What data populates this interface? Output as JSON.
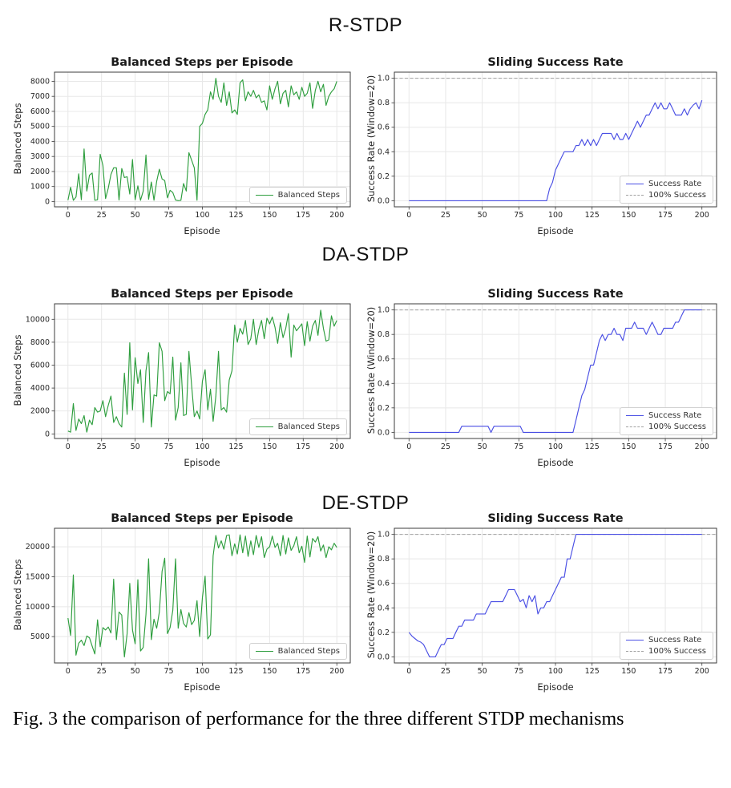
{
  "figure": {
    "sections": [
      {
        "label": "R-STDP"
      },
      {
        "label": "DA-STDP"
      },
      {
        "label": "DE-STDP"
      }
    ],
    "caption": "Fig. 3 the comparison of performance for the three different STDP mechanisms"
  },
  "colors": {
    "steps_line": "#2e9e3e",
    "rate_line": "#4a4fe4",
    "ref_line": "#a0a0a0",
    "grid": "#e8e8e8",
    "spine": "#3c3c3c",
    "tick": "#262626"
  },
  "chart_data": [
    {
      "type": "line",
      "section": "R-STDP",
      "title": "Balanced Steps per Episode",
      "xlabel": "Episode",
      "ylabel": "Balanced Steps",
      "xlim": [
        -10,
        210
      ],
      "ylim": [
        -350,
        8610
      ],
      "xticks": [
        0,
        25,
        50,
        75,
        100,
        125,
        150,
        175,
        200
      ],
      "xtick_labels": [
        "0",
        "25",
        "50",
        "75",
        "100",
        "125",
        "150",
        "175",
        "200"
      ],
      "yticks": [
        0,
        1000,
        2000,
        3000,
        4000,
        5000,
        6000,
        7000,
        8000
      ],
      "ytick_labels": [
        "0",
        "1000",
        "2000",
        "3000",
        "4000",
        "5000",
        "6000",
        "7000",
        "8000"
      ],
      "legend": [
        {
          "label": "Balanced Steps",
          "style": "solid",
          "color_key": "steps_line"
        }
      ],
      "x_start": 0,
      "x_step": 2,
      "series": [
        {
          "name": "Balanced Steps",
          "color_key": "steps_line",
          "values": [
            100,
            950,
            80,
            300,
            1850,
            120,
            3500,
            700,
            1750,
            1900,
            90,
            120,
            3150,
            2400,
            200,
            900,
            1800,
            2250,
            2250,
            100,
            2200,
            1600,
            1650,
            500,
            2800,
            120,
            1050,
            80,
            700,
            3100,
            150,
            1300,
            90,
            1350,
            2150,
            1500,
            1400,
            250,
            750,
            600,
            100,
            60,
            80,
            1200,
            700,
            3250,
            2750,
            2250,
            90,
            5000,
            5200,
            5800,
            6100,
            7300,
            6800,
            8200,
            7000,
            6600,
            7900,
            6400,
            7300,
            5900,
            6100,
            5800,
            7900,
            8100,
            6700,
            7300,
            7000,
            7400,
            6900,
            7100,
            6600,
            6700,
            6100,
            7700,
            6800,
            7500,
            8000,
            6500,
            7200,
            7400,
            6300,
            7700,
            7100,
            7300,
            6800,
            7600,
            7000,
            7200,
            7900,
            6200,
            7400,
            8000,
            7300,
            7800,
            6400,
            7000,
            7300,
            7500,
            8000
          ]
        }
      ]
    },
    {
      "type": "line",
      "section": "R-STDP",
      "title": "Sliding Success Rate",
      "xlabel": "Episode",
      "ylabel": "Success Rate (Window=20)",
      "xlim": [
        -10,
        210
      ],
      "ylim": [
        -0.05,
        1.05
      ],
      "xticks": [
        0,
        25,
        50,
        75,
        100,
        125,
        150,
        175,
        200
      ],
      "xtick_labels": [
        "0",
        "25",
        "50",
        "75",
        "100",
        "125",
        "150",
        "175",
        "200"
      ],
      "yticks": [
        0.0,
        0.2,
        0.4,
        0.6,
        0.8,
        1.0
      ],
      "ytick_labels": [
        "0.0",
        "0.2",
        "0.4",
        "0.6",
        "0.8",
        "1.0"
      ],
      "ref_line": {
        "y": 1.0,
        "label": "100% Success"
      },
      "legend": [
        {
          "label": "Success Rate",
          "style": "solid",
          "color_key": "rate_line"
        },
        {
          "label": "100% Success",
          "style": "dashed",
          "color_key": "ref_line"
        }
      ],
      "x_start": 0,
      "x_step": 2,
      "series": [
        {
          "name": "Success Rate",
          "color_key": "rate_line",
          "values": [
            0,
            0,
            0,
            0,
            0,
            0,
            0,
            0,
            0,
            0,
            0,
            0,
            0,
            0,
            0,
            0,
            0,
            0,
            0,
            0,
            0,
            0,
            0,
            0,
            0,
            0,
            0,
            0,
            0,
            0,
            0,
            0,
            0,
            0,
            0,
            0,
            0,
            0,
            0,
            0,
            0,
            0,
            0,
            0,
            0,
            0,
            0,
            0,
            0.1,
            0.15,
            0.25,
            0.3,
            0.35,
            0.4,
            0.4,
            0.4,
            0.4,
            0.45,
            0.45,
            0.5,
            0.45,
            0.5,
            0.45,
            0.5,
            0.45,
            0.5,
            0.55,
            0.55,
            0.55,
            0.55,
            0.5,
            0.55,
            0.5,
            0.5,
            0.55,
            0.5,
            0.55,
            0.6,
            0.65,
            0.6,
            0.65,
            0.7,
            0.7,
            0.75,
            0.8,
            0.75,
            0.8,
            0.75,
            0.75,
            0.8,
            0.75,
            0.7,
            0.7,
            0.7,
            0.75,
            0.7,
            0.75,
            0.78,
            0.8,
            0.75,
            0.82
          ]
        }
      ]
    },
    {
      "type": "line",
      "section": "DA-STDP",
      "title": "Balanced Steps per Episode",
      "xlabel": "Episode",
      "ylabel": "Balanced Steps",
      "xlim": [
        -10,
        210
      ],
      "ylim": [
        -400,
        11350
      ],
      "xticks": [
        0,
        25,
        50,
        75,
        100,
        125,
        150,
        175,
        200
      ],
      "xtick_labels": [
        "0",
        "25",
        "50",
        "75",
        "100",
        "125",
        "150",
        "175",
        "200"
      ],
      "yticks": [
        0,
        2000,
        4000,
        6000,
        8000,
        10000
      ],
      "ytick_labels": [
        "0",
        "2000",
        "4000",
        "6000",
        "8000",
        "10000"
      ],
      "legend": [
        {
          "label": "Balanced Steps",
          "style": "solid",
          "color_key": "steps_line"
        }
      ],
      "x_start": 0,
      "x_step": 2,
      "series": [
        {
          "name": "Balanced Steps",
          "color_key": "steps_line",
          "values": [
            250,
            150,
            2650,
            300,
            1300,
            900,
            1600,
            150,
            1200,
            800,
            2300,
            1900,
            2000,
            2900,
            1500,
            2500,
            3300,
            1000,
            1500,
            900,
            600,
            5300,
            1700,
            7950,
            2100,
            6650,
            4400,
            5600,
            1000,
            5500,
            7100,
            600,
            3400,
            3300,
            7950,
            7200,
            2900,
            3700,
            3500,
            6700,
            1200,
            2300,
            6200,
            1600,
            1700,
            7200,
            4200,
            1500,
            2000,
            1300,
            4600,
            5600,
            2100,
            3900,
            1100,
            3300,
            7200,
            2100,
            2300,
            1900,
            4700,
            5500,
            9500,
            8000,
            9200,
            8700,
            9900,
            7800,
            8300,
            10000,
            7800,
            9100,
            9900,
            8300,
            10100,
            9600,
            10200,
            9300,
            7900,
            9700,
            8400,
            9200,
            10500,
            6700,
            9500,
            9000,
            9300,
            9600,
            7700,
            9800,
            8100,
            9400,
            9900,
            8600,
            10800,
            9200,
            8100,
            8200,
            10300,
            9400,
            9900
          ]
        }
      ]
    },
    {
      "type": "line",
      "section": "DA-STDP",
      "title": "Sliding Success Rate",
      "xlabel": "Episode",
      "ylabel": "Success Rate (Window=20)",
      "xlim": [
        -10,
        210
      ],
      "ylim": [
        -0.05,
        1.05
      ],
      "xticks": [
        0,
        25,
        50,
        75,
        100,
        125,
        150,
        175,
        200
      ],
      "xtick_labels": [
        "0",
        "25",
        "50",
        "75",
        "100",
        "125",
        "150",
        "175",
        "200"
      ],
      "yticks": [
        0.0,
        0.2,
        0.4,
        0.6,
        0.8,
        1.0
      ],
      "ytick_labels": [
        "0.0",
        "0.2",
        "0.4",
        "0.6",
        "0.8",
        "1.0"
      ],
      "ref_line": {
        "y": 1.0,
        "label": "100% Success"
      },
      "legend": [
        {
          "label": "Success Rate",
          "style": "solid",
          "color_key": "rate_line"
        },
        {
          "label": "100% Success",
          "style": "dashed",
          "color_key": "ref_line"
        }
      ],
      "x_start": 0,
      "x_step": 2,
      "series": [
        {
          "name": "Success Rate",
          "color_key": "rate_line",
          "values": [
            0,
            0,
            0,
            0,
            0,
            0,
            0,
            0,
            0,
            0,
            0,
            0,
            0,
            0,
            0,
            0,
            0,
            0,
            0.05,
            0.05,
            0.05,
            0.05,
            0.05,
            0.05,
            0.05,
            0.05,
            0.05,
            0.05,
            0,
            0.05,
            0.05,
            0.05,
            0.05,
            0.05,
            0.05,
            0.05,
            0.05,
            0.05,
            0.05,
            0,
            0,
            0,
            0,
            0,
            0,
            0,
            0,
            0,
            0,
            0,
            0,
            0,
            0,
            0,
            0,
            0,
            0,
            0.1,
            0.2,
            0.3,
            0.35,
            0.45,
            0.55,
            0.55,
            0.65,
            0.75,
            0.8,
            0.75,
            0.8,
            0.8,
            0.85,
            0.8,
            0.8,
            0.75,
            0.85,
            0.85,
            0.85,
            0.9,
            0.85,
            0.85,
            0.85,
            0.8,
            0.85,
            0.9,
            0.85,
            0.8,
            0.8,
            0.85,
            0.85,
            0.85,
            0.85,
            0.9,
            0.9,
            0.95,
            1.0,
            1.0,
            1.0,
            1.0,
            1.0,
            1.0,
            1.0
          ]
        }
      ]
    },
    {
      "type": "line",
      "section": "DE-STDP",
      "title": "Balanced Steps per Episode",
      "xlabel": "Episode",
      "ylabel": "Balanced Steps",
      "xlim": [
        -10,
        210
      ],
      "ylim": [
        600,
        23100
      ],
      "xticks": [
        0,
        25,
        50,
        75,
        100,
        125,
        150,
        175,
        200
      ],
      "xtick_labels": [
        "0",
        "25",
        "50",
        "75",
        "100",
        "125",
        "150",
        "175",
        "200"
      ],
      "yticks": [
        5000,
        10000,
        15000,
        20000
      ],
      "ytick_labels": [
        "5000",
        "10000",
        "15000",
        "20000"
      ],
      "legend": [
        {
          "label": "Balanced Steps",
          "style": "solid",
          "color_key": "steps_line"
        }
      ],
      "x_start": 0,
      "x_step": 2,
      "series": [
        {
          "name": "Balanced Steps",
          "color_key": "steps_line",
          "values": [
            8100,
            5200,
            15300,
            1900,
            3900,
            4400,
            3500,
            5100,
            4800,
            3400,
            2100,
            7800,
            3300,
            6500,
            6100,
            6600,
            5600,
            14600,
            4500,
            9100,
            8600,
            1600,
            5500,
            13900,
            6100,
            3800,
            14500,
            2600,
            3200,
            8700,
            18000,
            4500,
            7900,
            6400,
            9100,
            15900,
            18100,
            5500,
            6500,
            9400,
            18000,
            6400,
            9500,
            7200,
            6600,
            9000,
            7000,
            7700,
            11000,
            5000,
            11500,
            15100,
            4600,
            5300,
            18500,
            21900,
            19800,
            21000,
            19600,
            21900,
            22000,
            18500,
            20500,
            18800,
            22000,
            19000,
            21800,
            18400,
            21000,
            18700,
            21900,
            19900,
            21700,
            18200,
            19600,
            20000,
            21800,
            19900,
            20600,
            18500,
            21900,
            18800,
            21500,
            19400,
            20200,
            21700,
            19000,
            20100,
            17400,
            21800,
            18300,
            21400,
            20800,
            21700,
            19300,
            20300,
            18200,
            20000,
            19500,
            20600,
            19900
          ]
        }
      ]
    },
    {
      "type": "line",
      "section": "DE-STDP",
      "title": "Sliding Success Rate",
      "xlabel": "Episode",
      "ylabel": "Success Rate (Window=20)",
      "xlim": [
        -10,
        210
      ],
      "ylim": [
        -0.05,
        1.05
      ],
      "xticks": [
        0,
        25,
        50,
        75,
        100,
        125,
        150,
        175,
        200
      ],
      "xtick_labels": [
        "0",
        "25",
        "50",
        "75",
        "100",
        "125",
        "150",
        "175",
        "200"
      ],
      "yticks": [
        0.0,
        0.2,
        0.4,
        0.6,
        0.8,
        1.0
      ],
      "ytick_labels": [
        "0.0",
        "0.2",
        "0.4",
        "0.6",
        "0.8",
        "1.0"
      ],
      "ref_line": {
        "y": 1.0,
        "label": "100% Success"
      },
      "legend": [
        {
          "label": "Success Rate",
          "style": "solid",
          "color_key": "rate_line"
        },
        {
          "label": "100% Success",
          "style": "dashed",
          "color_key": "ref_line"
        }
      ],
      "x_start": 0,
      "x_step": 2,
      "series": [
        {
          "name": "Success Rate",
          "color_key": "rate_line",
          "values": [
            0.2,
            0.17,
            0.15,
            0.13,
            0.12,
            0.1,
            0.05,
            0,
            0,
            0,
            0.05,
            0.1,
            0.1,
            0.15,
            0.15,
            0.15,
            0.2,
            0.25,
            0.25,
            0.3,
            0.3,
            0.3,
            0.3,
            0.35,
            0.35,
            0.35,
            0.35,
            0.4,
            0.45,
            0.45,
            0.45,
            0.45,
            0.45,
            0.5,
            0.55,
            0.55,
            0.55,
            0.5,
            0.45,
            0.47,
            0.4,
            0.5,
            0.45,
            0.5,
            0.35,
            0.4,
            0.4,
            0.45,
            0.45,
            0.5,
            0.55,
            0.6,
            0.65,
            0.65,
            0.8,
            0.8,
            0.9,
            1.0,
            1.0,
            1.0,
            1.0,
            1.0,
            1.0,
            1.0,
            1.0,
            1.0,
            1.0,
            1.0,
            1.0,
            1.0,
            1.0,
            1.0,
            1.0,
            1.0,
            1.0,
            1.0,
            1.0,
            1.0,
            1.0,
            1.0,
            1.0,
            1.0,
            1.0,
            1.0,
            1.0,
            1.0,
            1.0,
            1.0,
            1.0,
            1.0,
            1.0,
            1.0,
            1.0,
            1.0,
            1.0,
            1.0,
            1.0,
            1.0,
            1.0,
            1.0,
            1.0
          ]
        }
      ]
    }
  ]
}
